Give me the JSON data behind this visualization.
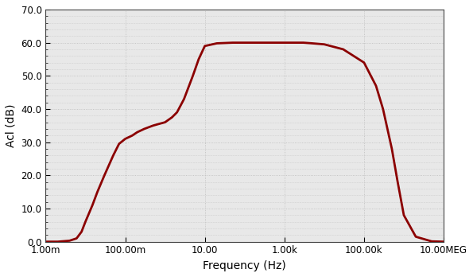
{
  "title": "",
  "xlabel": "Frequency (Hz)",
  "ylabel": "Acl (dB)",
  "xmin": 0.001,
  "xmax": 10000000,
  "ymin": 0.0,
  "ymax": 70.0,
  "yticks": [
    0.0,
    10.0,
    20.0,
    30.0,
    40.0,
    50.0,
    60.0,
    70.0
  ],
  "xtick_positions": [
    0.001,
    0.1,
    10,
    1000,
    100000,
    10000000
  ],
  "xtick_labels": [
    "1.00m",
    "100.00m",
    "10.00",
    "1.00k",
    "100.00k",
    "10.00MEG"
  ],
  "line_color": "#8B0000",
  "line_width": 2.0,
  "bg_color": "#e8e8e8",
  "grid_color": "#bbbbbb",
  "curve_x": [
    0.001,
    0.002,
    0.004,
    0.006,
    0.008,
    0.01,
    0.015,
    0.02,
    0.03,
    0.05,
    0.07,
    0.1,
    0.15,
    0.2,
    0.3,
    0.5,
    0.7,
    1.0,
    1.5,
    2.0,
    3.0,
    5.0,
    7.0,
    10.0,
    20.0,
    50.0,
    100.0,
    300.0,
    1000.0,
    2000.0,
    3000.0,
    5000.0,
    10000.0,
    30000.0,
    100000.0,
    200000.0,
    300000.0,
    500000.0,
    700000.0,
    1000000.0,
    2000000.0,
    5000000.0,
    10000000.0
  ],
  "curve_y": [
    0.0,
    0.0,
    0.3,
    1.0,
    3.0,
    6.0,
    11.0,
    15.0,
    20.0,
    26.0,
    29.5,
    31.0,
    32.0,
    33.0,
    34.0,
    35.0,
    35.5,
    36.0,
    37.5,
    39.0,
    43.0,
    50.0,
    55.0,
    59.0,
    59.8,
    60.0,
    60.0,
    60.0,
    60.0,
    60.0,
    60.0,
    59.8,
    59.5,
    58.0,
    54.0,
    47.0,
    40.0,
    28.0,
    18.0,
    8.0,
    1.5,
    0.1,
    0.0
  ]
}
